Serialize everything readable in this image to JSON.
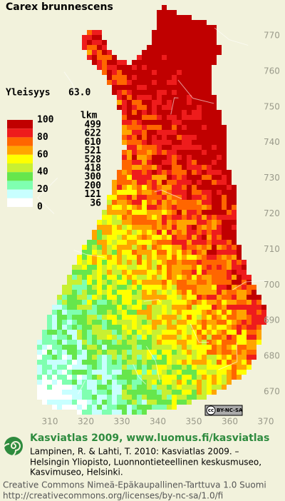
{
  "title": "Carex brunnescens",
  "frequency": {
    "label": "Yleisyys",
    "value": "63.0"
  },
  "legend": {
    "scale": [
      "100",
      "80",
      "60",
      "40",
      "20",
      "0"
    ],
    "count_header": "lkm",
    "classes": [
      {
        "color": "#c00000",
        "count": "499"
      },
      {
        "color": "#ee1c1c",
        "count": "622"
      },
      {
        "color": "#ff6600",
        "count": "610"
      },
      {
        "color": "#ffa500",
        "count": "521"
      },
      {
        "color": "#ffff00",
        "count": "528"
      },
      {
        "color": "#c8f032",
        "count": "418"
      },
      {
        "color": "#66e64c",
        "count": "300"
      },
      {
        "color": "#7fffb0",
        "count": "200"
      },
      {
        "color": "#c8ffff",
        "count": "121"
      },
      {
        "color": "#ffffff",
        "count": "36"
      }
    ]
  },
  "y_axis": [
    "770",
    "760",
    "750",
    "740",
    "730",
    "720",
    "710",
    "700",
    "690",
    "680",
    "670"
  ],
  "x_axis": [
    "310",
    "320",
    "330",
    "340",
    "350",
    "360",
    "370"
  ],
  "license_badge": {
    "cc": "cc",
    "text": "BY-NC-SA"
  },
  "footer": {
    "heading": "Kasviatlas 2009, www.luomus.fi/kasviatlas",
    "citation": [
      "Lampinen, R. & Lahti, T. 2010: Kasviatlas 2009. –",
      "Helsingin Yliopisto, Luonnontieteellinen keskusmuseo,",
      "Kasvimuseo, Helsinki."
    ],
    "license": [
      "Creative Commons Nimeä-Epäkaupallinen-Tarttuva 1.0 Suomi",
      "http://creativecommons.org/licenses/by-nc-sa/1.0/fi"
    ]
  }
}
